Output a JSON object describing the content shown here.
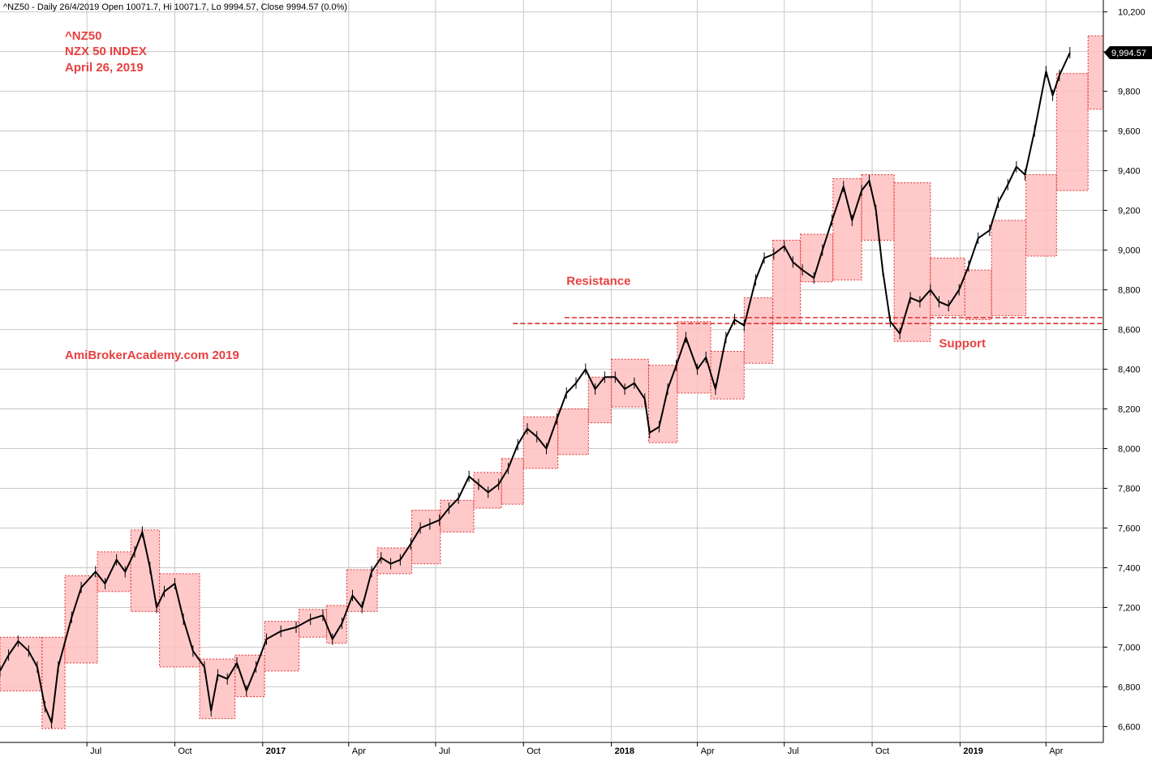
{
  "header": {
    "text": "^NZ50 - Daily 26/4/2019 Open 10071.7, Hi 10071.7, Lo 9994.57, Close 9994.57 (0.0%)"
  },
  "last_price_label": "9,994.57",
  "colors": {
    "box_fill": "#ffc0c0",
    "box_stroke": "#e03030",
    "annotation": "#e84040",
    "line_dash": "#e03030",
    "candle": "#000000",
    "grid": "#c8c8c8"
  },
  "chart_data": {
    "type": "line",
    "title_lines": [
      "^NZ50",
      "NZX 50 INDEX",
      "April 26, 2019"
    ],
    "watermark": "AmiBrokerAcademy.com  2019",
    "annotations": [
      {
        "text": "Resistance",
        "x": "2017-11-15",
        "y": 8825
      },
      {
        "text": "Support",
        "x": "2018-12-10",
        "y": 8510
      }
    ],
    "xlabel": "",
    "ylabel": "",
    "ylim": [
      6520,
      10260
    ],
    "xlim": [
      "2016-04-01",
      "2019-05-31"
    ],
    "grid": true,
    "y_ticks": [
      6600,
      6800,
      7000,
      7200,
      7400,
      7600,
      7800,
      8000,
      8200,
      8400,
      8600,
      8800,
      9000,
      9200,
      9400,
      9600,
      9800,
      10000,
      10200
    ],
    "y_tick_labels": [
      "6,600",
      "6,800",
      "7,000",
      "7,200",
      "7,400",
      "7,600",
      "7,800",
      "8,000",
      "8,200",
      "8,400",
      "8,600",
      "8,800",
      "9,000",
      "9,200",
      "9,400",
      "9,600",
      "9,800",
      "10,000",
      "10,200"
    ],
    "x_ticks": [
      {
        "date": "2016-07-01",
        "label": "Jul",
        "bold": false
      },
      {
        "date": "2016-10-01",
        "label": "Oct",
        "bold": false
      },
      {
        "date": "2017-01-01",
        "label": "2017",
        "bold": true
      },
      {
        "date": "2017-04-01",
        "label": "Apr",
        "bold": false
      },
      {
        "date": "2017-07-01",
        "label": "Jul",
        "bold": false
      },
      {
        "date": "2017-10-01",
        "label": "Oct",
        "bold": false
      },
      {
        "date": "2018-01-01",
        "label": "2018",
        "bold": true
      },
      {
        "date": "2018-04-01",
        "label": "Apr",
        "bold": false
      },
      {
        "date": "2018-07-01",
        "label": "Jul",
        "bold": false
      },
      {
        "date": "2018-10-01",
        "label": "Oct",
        "bold": false
      },
      {
        "date": "2019-01-01",
        "label": "2019",
        "bold": true
      },
      {
        "date": "2019-04-01",
        "label": "Apr",
        "bold": false
      }
    ],
    "price_series": [
      {
        "x": "2016-04-01",
        "y": 6880
      },
      {
        "x": "2016-04-10",
        "y": 6960
      },
      {
        "x": "2016-04-20",
        "y": 7030
      },
      {
        "x": "2016-05-01",
        "y": 6980
      },
      {
        "x": "2016-05-10",
        "y": 6900
      },
      {
        "x": "2016-05-18",
        "y": 6700
      },
      {
        "x": "2016-05-25",
        "y": 6620
      },
      {
        "x": "2016-06-01",
        "y": 6900
      },
      {
        "x": "2016-06-15",
        "y": 7150
      },
      {
        "x": "2016-06-25",
        "y": 7300
      },
      {
        "x": "2016-07-10",
        "y": 7380
      },
      {
        "x": "2016-07-20",
        "y": 7320
      },
      {
        "x": "2016-08-01",
        "y": 7440
      },
      {
        "x": "2016-08-10",
        "y": 7380
      },
      {
        "x": "2016-08-20",
        "y": 7480
      },
      {
        "x": "2016-08-28",
        "y": 7580
      },
      {
        "x": "2016-09-05",
        "y": 7400
      },
      {
        "x": "2016-09-12",
        "y": 7200
      },
      {
        "x": "2016-09-20",
        "y": 7280
      },
      {
        "x": "2016-10-01",
        "y": 7320
      },
      {
        "x": "2016-10-10",
        "y": 7140
      },
      {
        "x": "2016-10-20",
        "y": 6980
      },
      {
        "x": "2016-11-01",
        "y": 6900
      },
      {
        "x": "2016-11-08",
        "y": 6680
      },
      {
        "x": "2016-11-15",
        "y": 6860
      },
      {
        "x": "2016-11-25",
        "y": 6840
      },
      {
        "x": "2016-12-05",
        "y": 6920
      },
      {
        "x": "2016-12-15",
        "y": 6780
      },
      {
        "x": "2016-12-25",
        "y": 6900
      },
      {
        "x": "2017-01-05",
        "y": 7040
      },
      {
        "x": "2017-01-20",
        "y": 7080
      },
      {
        "x": "2017-02-05",
        "y": 7100
      },
      {
        "x": "2017-02-20",
        "y": 7140
      },
      {
        "x": "2017-03-05",
        "y": 7160
      },
      {
        "x": "2017-03-15",
        "y": 7040
      },
      {
        "x": "2017-03-25",
        "y": 7120
      },
      {
        "x": "2017-04-05",
        "y": 7260
      },
      {
        "x": "2017-04-15",
        "y": 7200
      },
      {
        "x": "2017-04-25",
        "y": 7380
      },
      {
        "x": "2017-05-05",
        "y": 7450
      },
      {
        "x": "2017-05-15",
        "y": 7420
      },
      {
        "x": "2017-05-25",
        "y": 7440
      },
      {
        "x": "2017-06-05",
        "y": 7520
      },
      {
        "x": "2017-06-15",
        "y": 7600
      },
      {
        "x": "2017-06-25",
        "y": 7620
      },
      {
        "x": "2017-07-05",
        "y": 7640
      },
      {
        "x": "2017-07-15",
        "y": 7700
      },
      {
        "x": "2017-07-25",
        "y": 7750
      },
      {
        "x": "2017-08-05",
        "y": 7860
      },
      {
        "x": "2017-08-15",
        "y": 7820
      },
      {
        "x": "2017-08-25",
        "y": 7780
      },
      {
        "x": "2017-09-05",
        "y": 7820
      },
      {
        "x": "2017-09-15",
        "y": 7900
      },
      {
        "x": "2017-09-25",
        "y": 8020
      },
      {
        "x": "2017-10-05",
        "y": 8100
      },
      {
        "x": "2017-10-15",
        "y": 8060
      },
      {
        "x": "2017-10-25",
        "y": 8000
      },
      {
        "x": "2017-11-05",
        "y": 8150
      },
      {
        "x": "2017-11-15",
        "y": 8280
      },
      {
        "x": "2017-11-25",
        "y": 8330
      },
      {
        "x": "2017-12-05",
        "y": 8400
      },
      {
        "x": "2017-12-15",
        "y": 8300
      },
      {
        "x": "2017-12-25",
        "y": 8360
      },
      {
        "x": "2018-01-05",
        "y": 8360
      },
      {
        "x": "2018-01-15",
        "y": 8300
      },
      {
        "x": "2018-01-25",
        "y": 8330
      },
      {
        "x": "2018-02-05",
        "y": 8250
      },
      {
        "x": "2018-02-10",
        "y": 8080
      },
      {
        "x": "2018-02-20",
        "y": 8110
      },
      {
        "x": "2018-03-01",
        "y": 8300
      },
      {
        "x": "2018-03-10",
        "y": 8420
      },
      {
        "x": "2018-03-20",
        "y": 8560
      },
      {
        "x": "2018-04-01",
        "y": 8400
      },
      {
        "x": "2018-04-10",
        "y": 8460
      },
      {
        "x": "2018-04-20",
        "y": 8300
      },
      {
        "x": "2018-05-01",
        "y": 8560
      },
      {
        "x": "2018-05-10",
        "y": 8650
      },
      {
        "x": "2018-05-20",
        "y": 8620
      },
      {
        "x": "2018-06-01",
        "y": 8850
      },
      {
        "x": "2018-06-10",
        "y": 8960
      },
      {
        "x": "2018-06-20",
        "y": 8980
      },
      {
        "x": "2018-07-01",
        "y": 9020
      },
      {
        "x": "2018-07-10",
        "y": 8940
      },
      {
        "x": "2018-07-20",
        "y": 8900
      },
      {
        "x": "2018-08-01",
        "y": 8860
      },
      {
        "x": "2018-08-10",
        "y": 9000
      },
      {
        "x": "2018-08-20",
        "y": 9150
      },
      {
        "x": "2018-09-01",
        "y": 9320
      },
      {
        "x": "2018-09-10",
        "y": 9150
      },
      {
        "x": "2018-09-20",
        "y": 9300
      },
      {
        "x": "2018-09-28",
        "y": 9350
      },
      {
        "x": "2018-10-05",
        "y": 9200
      },
      {
        "x": "2018-10-12",
        "y": 8900
      },
      {
        "x": "2018-10-20",
        "y": 8640
      },
      {
        "x": "2018-10-30",
        "y": 8580
      },
      {
        "x": "2018-11-10",
        "y": 8760
      },
      {
        "x": "2018-11-20",
        "y": 8740
      },
      {
        "x": "2018-12-01",
        "y": 8800
      },
      {
        "x": "2018-12-10",
        "y": 8740
      },
      {
        "x": "2018-12-20",
        "y": 8720
      },
      {
        "x": "2018-12-31",
        "y": 8800
      },
      {
        "x": "2019-01-10",
        "y": 8920
      },
      {
        "x": "2019-01-20",
        "y": 9060
      },
      {
        "x": "2019-02-01",
        "y": 9100
      },
      {
        "x": "2019-02-10",
        "y": 9240
      },
      {
        "x": "2019-02-20",
        "y": 9330
      },
      {
        "x": "2019-03-01",
        "y": 9420
      },
      {
        "x": "2019-03-10",
        "y": 9380
      },
      {
        "x": "2019-03-20",
        "y": 9600
      },
      {
        "x": "2019-04-01",
        "y": 9900
      },
      {
        "x": "2019-04-08",
        "y": 9780
      },
      {
        "x": "2019-04-15",
        "y": 9880
      },
      {
        "x": "2019-04-26",
        "y": 9994.57
      }
    ],
    "range_boxes": [
      {
        "x0": "2016-04-01",
        "x1": "2016-05-15",
        "low": 6780,
        "high": 7050
      },
      {
        "x0": "2016-05-15",
        "x1": "2016-06-08",
        "low": 6590,
        "high": 7050
      },
      {
        "x0": "2016-06-08",
        "x1": "2016-07-12",
        "low": 6920,
        "high": 7360
      },
      {
        "x0": "2016-07-12",
        "x1": "2016-08-16",
        "low": 7280,
        "high": 7480
      },
      {
        "x0": "2016-08-16",
        "x1": "2016-09-15",
        "low": 7180,
        "high": 7590
      },
      {
        "x0": "2016-09-15",
        "x1": "2016-10-27",
        "low": 6900,
        "high": 7370
      },
      {
        "x0": "2016-10-27",
        "x1": "2016-12-03",
        "low": 6640,
        "high": 6940
      },
      {
        "x0": "2016-12-03",
        "x1": "2017-01-03",
        "low": 6750,
        "high": 6960
      },
      {
        "x0": "2017-01-03",
        "x1": "2017-02-08",
        "low": 6880,
        "high": 7130
      },
      {
        "x0": "2017-02-08",
        "x1": "2017-03-09",
        "low": 7050,
        "high": 7190
      },
      {
        "x0": "2017-03-09",
        "x1": "2017-03-30",
        "low": 7020,
        "high": 7210
      },
      {
        "x0": "2017-03-30",
        "x1": "2017-05-01",
        "low": 7180,
        "high": 7390
      },
      {
        "x0": "2017-05-01",
        "x1": "2017-06-06",
        "low": 7370,
        "high": 7500
      },
      {
        "x0": "2017-06-06",
        "x1": "2017-07-06",
        "low": 7420,
        "high": 7690
      },
      {
        "x0": "2017-07-06",
        "x1": "2017-08-10",
        "low": 7580,
        "high": 7740
      },
      {
        "x0": "2017-08-10",
        "x1": "2017-09-08",
        "low": 7700,
        "high": 7880
      },
      {
        "x0": "2017-09-08",
        "x1": "2017-10-01",
        "low": 7720,
        "high": 7950
      },
      {
        "x0": "2017-10-01",
        "x1": "2017-11-06",
        "low": 7900,
        "high": 8160
      },
      {
        "x0": "2017-11-06",
        "x1": "2017-12-08",
        "low": 7970,
        "high": 8200
      },
      {
        "x0": "2017-12-08",
        "x1": "2018-01-01",
        "low": 8130,
        "high": 8360
      },
      {
        "x0": "2018-01-01",
        "x1": "2018-02-09",
        "low": 8210,
        "high": 8450
      },
      {
        "x0": "2018-02-09",
        "x1": "2018-03-11",
        "low": 8030,
        "high": 8420
      },
      {
        "x0": "2018-03-11",
        "x1": "2018-04-15",
        "low": 8280,
        "high": 8640
      },
      {
        "x0": "2018-04-15",
        "x1": "2018-05-20",
        "low": 8250,
        "high": 8490
      },
      {
        "x0": "2018-05-20",
        "x1": "2018-06-19",
        "low": 8430,
        "high": 8760
      },
      {
        "x0": "2018-06-19",
        "x1": "2018-07-18",
        "low": 8630,
        "high": 9050
      },
      {
        "x0": "2018-07-18",
        "x1": "2018-08-21",
        "low": 8840,
        "high": 9080
      },
      {
        "x0": "2018-08-21",
        "x1": "2018-09-20",
        "low": 8850,
        "high": 9360
      },
      {
        "x0": "2018-09-20",
        "x1": "2018-10-24",
        "low": 9050,
        "high": 9380
      },
      {
        "x0": "2018-10-24",
        "x1": "2018-12-01",
        "low": 8540,
        "high": 9340
      },
      {
        "x0": "2018-12-01",
        "x1": "2019-01-06",
        "low": 8670,
        "high": 8960
      },
      {
        "x0": "2019-01-06",
        "x1": "2019-02-03",
        "low": 8650,
        "high": 8900
      },
      {
        "x0": "2019-02-03",
        "x1": "2019-03-11",
        "low": 8670,
        "high": 9150
      },
      {
        "x0": "2019-03-11",
        "x1": "2019-04-12",
        "low": 8970,
        "high": 9380
      },
      {
        "x0": "2019-04-12",
        "x1": "2019-05-15",
        "low": 9300,
        "high": 9890
      },
      {
        "x0": "2019-05-15",
        "x1": "2019-05-31",
        "low": 9710,
        "high": 10080
      }
    ],
    "levels": [
      {
        "name": "Resistance",
        "from": "2017-11-13",
        "to": "2019-05-31",
        "y": 8660
      },
      {
        "name": "Support",
        "from": "2017-09-20",
        "to": "2019-05-31",
        "y": 8630
      }
    ]
  }
}
